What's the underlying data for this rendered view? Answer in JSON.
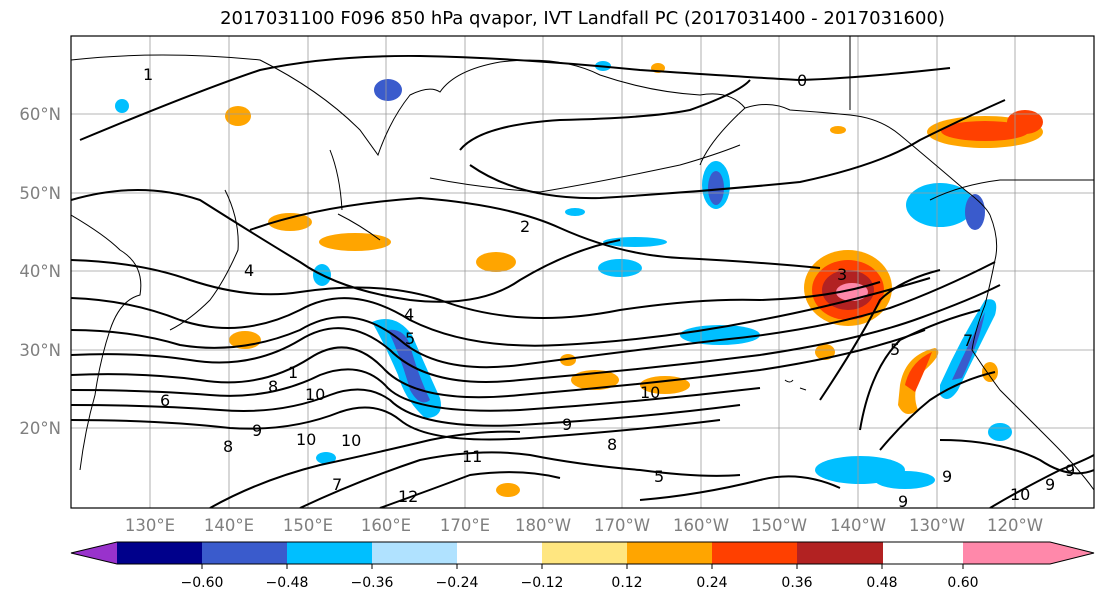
{
  "title": "2017031100 F096 850 hPa qvapor, IVT Landfall PC (2017031400 - 2017031600)",
  "lat_labels": [
    "60°N",
    "50°N",
    "40°N",
    "30°N",
    "20°N"
  ],
  "lon_labels": [
    "130°E",
    "140°E",
    "150°E",
    "160°E",
    "170°E",
    "180°W",
    "170°W",
    "160°W",
    "150°W",
    "140°W",
    "130°W",
    "120°W"
  ],
  "colorbar": {
    "colors": [
      "#9932cc",
      "#00008b",
      "#3a5bcc",
      "#00bfff",
      "#b0e2ff",
      "#ffffff",
      "#ffe680",
      "#ffa500",
      "#ff4000",
      "#b22222",
      "#ff88aa"
    ],
    "tick_labels": [
      "−0.60",
      "−0.48",
      "−0.36",
      "−0.24",
      "−0.12",
      "0.12",
      "0.24",
      "0.36",
      "0.48",
      "0.60"
    ]
  },
  "contour_labels": [
    "0",
    "2",
    "1",
    "3",
    "4",
    "5",
    "6",
    "8",
    "8",
    "9",
    "10",
    "10",
    "10",
    "10",
    "11",
    "12",
    "1",
    "9",
    "7",
    "8",
    "5",
    "9",
    "7",
    "4",
    "9",
    "5",
    "9",
    "9",
    "10"
  ]
}
